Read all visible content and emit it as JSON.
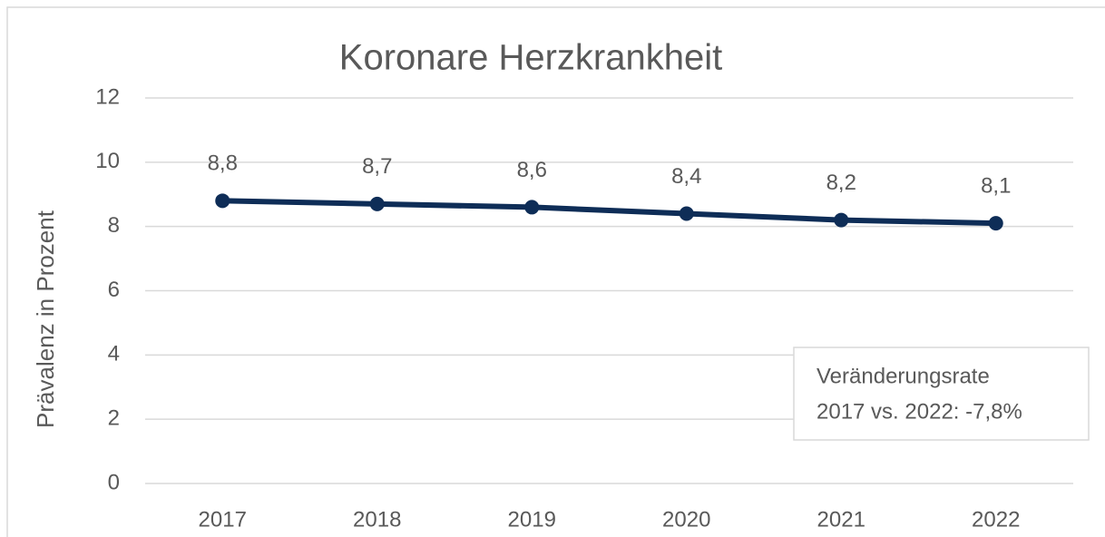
{
  "chart_data": {
    "type": "line",
    "title": "Koronare Herzkrankheit",
    "y_label": "Prävalenz in Prozent",
    "categories": [
      "2017",
      "2018",
      "2019",
      "2020",
      "2021",
      "2022"
    ],
    "values": [
      8.8,
      8.7,
      8.6,
      8.4,
      8.2,
      8.1
    ],
    "value_labels": [
      "8,8",
      "8,7",
      "8,6",
      "8,4",
      "8,2",
      "8,1"
    ],
    "color": "#0e2d57",
    "ylim": [
      0,
      12
    ],
    "yticks": [
      0,
      2,
      4,
      6,
      8,
      10,
      12
    ],
    "grid": true,
    "annotation": [
      "Veränderungsrate",
      "2017 vs. 2022: -7,8%"
    ]
  }
}
